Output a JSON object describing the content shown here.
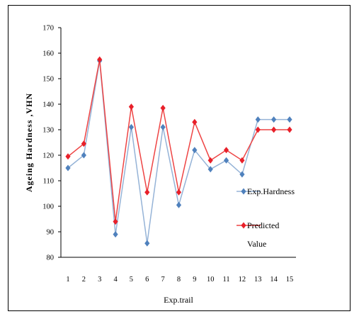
{
  "chart_data": {
    "type": "line",
    "title": "",
    "xlabel": "Exp.trail",
    "ylabel": "Ageing Hardness ,VHN",
    "categories": [
      "1",
      "2",
      "3",
      "4",
      "5",
      "6",
      "7",
      "8",
      "9",
      "10",
      "11",
      "12",
      "13",
      "14",
      "15"
    ],
    "ylim": [
      80,
      170
    ],
    "yticks": [
      "80",
      "90",
      "100",
      "110",
      "120",
      "130",
      "140",
      "150",
      "160",
      "170"
    ],
    "grid": false,
    "legend_position": "right",
    "series": [
      {
        "name": "Exp.Hardness",
        "color": "#4F81BD",
        "line_color": "#95B3D7",
        "values": [
          115,
          120,
          157,
          89,
          131,
          85.5,
          131,
          100.5,
          122,
          114.5,
          118,
          112.5,
          134,
          134,
          134
        ]
      },
      {
        "name": "Predicted Value",
        "legend_lines": [
          "Predicted",
          "Value"
        ],
        "color": "#E8202A",
        "line_color": "#EE4444",
        "values": [
          119.5,
          124.5,
          157.5,
          94,
          139,
          105.5,
          138.5,
          105.5,
          133,
          118,
          122,
          118,
          130,
          130,
          130
        ]
      }
    ]
  }
}
